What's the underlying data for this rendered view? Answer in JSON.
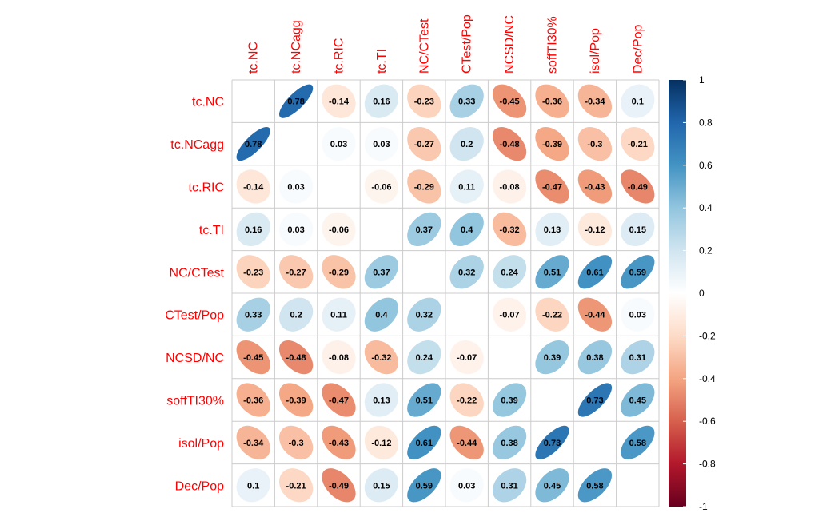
{
  "chart_data": {
    "type": "heatmap",
    "title": "",
    "variables": [
      "tc.NC",
      "tc.NCagg",
      "tc.RIC",
      "tc.TI",
      "NC/CTest",
      "CTest/Pop",
      "NCSD/NC",
      "soffTI30%",
      "isol/Pop",
      "Dec/Pop"
    ],
    "matrix": [
      [
        null,
        0.78,
        -0.14,
        0.16,
        -0.23,
        0.33,
        -0.45,
        -0.36,
        -0.34,
        0.1
      ],
      [
        0.78,
        null,
        0.03,
        0.03,
        -0.27,
        0.2,
        -0.48,
        -0.39,
        -0.3,
        -0.21
      ],
      [
        -0.14,
        0.03,
        null,
        -0.06,
        -0.29,
        0.11,
        -0.08,
        -0.47,
        -0.43,
        -0.49
      ],
      [
        0.16,
        0.03,
        -0.06,
        null,
        0.37,
        0.4,
        -0.32,
        0.13,
        -0.12,
        0.15
      ],
      [
        -0.23,
        -0.27,
        -0.29,
        0.37,
        null,
        0.32,
        0.24,
        0.51,
        0.61,
        0.59
      ],
      [
        0.33,
        0.2,
        0.11,
        0.4,
        0.32,
        null,
        -0.07,
        -0.22,
        -0.44,
        0.03
      ],
      [
        -0.45,
        -0.48,
        -0.08,
        -0.32,
        0.24,
        -0.07,
        null,
        0.39,
        0.38,
        0.31
      ],
      [
        -0.36,
        -0.39,
        -0.47,
        0.13,
        0.51,
        -0.22,
        0.39,
        null,
        0.73,
        0.45
      ],
      [
        -0.34,
        -0.3,
        -0.43,
        -0.12,
        0.61,
        -0.44,
        0.38,
        0.73,
        null,
        0.58
      ],
      [
        0.1,
        -0.21,
        -0.49,
        0.15,
        0.59,
        0.03,
        0.31,
        0.45,
        0.58,
        null
      ]
    ],
    "value_labels": [
      [
        "",
        "0.78",
        "-0.14",
        "0.16",
        "-0.23",
        "0.33",
        "-0.45",
        "-0.36",
        "-0.34",
        "0.1"
      ],
      [
        "0.78",
        "",
        "0.03",
        "0.03",
        "-0.27",
        "0.2",
        "-0.48",
        "-0.39",
        "-0.3",
        "-0.21"
      ],
      [
        "-0.14",
        "0.03",
        "",
        "-0.06",
        "-0.29",
        "0.11",
        "-0.08",
        "-0.47",
        "-0.43",
        "-0.49"
      ],
      [
        "0.16",
        "0.03",
        "-0.06",
        "",
        "0.37",
        "0.4",
        "-0.32",
        "0.13",
        "-0.12",
        "0.15"
      ],
      [
        "-0.23",
        "-0.27",
        "-0.29",
        "0.37",
        "",
        "0.32",
        "0.24",
        "0.51",
        "0.61",
        "0.59"
      ],
      [
        "0.33",
        "0.2",
        "0.11",
        "0.4",
        "0.32",
        "",
        "-0.07",
        "-0.22",
        "-0.44",
        "0.03"
      ],
      [
        "-0.45",
        "-0.48",
        "-0.08",
        "-0.32",
        "0.24",
        "-0.07",
        "",
        "0.39",
        "0.38",
        "0.31"
      ],
      [
        "-0.36",
        "-0.39",
        "-0.47",
        "0.13",
        "0.51",
        "-0.22",
        "0.39",
        "",
        "0.73",
        "0.45"
      ],
      [
        "-0.34",
        "-0.3",
        "-0.43",
        "-0.12",
        "0.61",
        "-0.44",
        "0.38",
        "0.73",
        "",
        "0.58"
      ],
      [
        "0.1",
        "-0.21",
        "-0.49",
        "0.15",
        "0.59",
        "0.03",
        "0.31",
        "0.45",
        "0.58",
        ""
      ]
    ],
    "shape": "ellipse",
    "diagonal_shown": false,
    "colorbar": {
      "ticks": [
        1,
        0.8,
        0.6,
        0.4,
        0.2,
        0,
        -0.2,
        -0.4,
        -0.6,
        -0.8,
        -1
      ],
      "tick_labels": [
        "1",
        "0.8",
        "0.6",
        "0.4",
        "0.2",
        "0",
        "-0.2",
        "-0.4",
        "-0.6",
        "-0.8",
        "-1"
      ],
      "range": [
        -1,
        1
      ],
      "placement": "right"
    },
    "colors": {
      "label_color": "#ff0000",
      "value_text": "#000000",
      "grid": "#cccccc",
      "scale": [
        [
          -1.0,
          "#67001f"
        ],
        [
          -0.8,
          "#b2182b"
        ],
        [
          -0.6,
          "#d6604d"
        ],
        [
          -0.4,
          "#f4a582"
        ],
        [
          -0.2,
          "#fddbc7"
        ],
        [
          0.0,
          "#ffffff"
        ],
        [
          0.2,
          "#d1e5f0"
        ],
        [
          0.4,
          "#92c5de"
        ],
        [
          0.6,
          "#4393c3"
        ],
        [
          0.8,
          "#2166ac"
        ],
        [
          1.0,
          "#053061"
        ]
      ]
    },
    "grid": true
  }
}
